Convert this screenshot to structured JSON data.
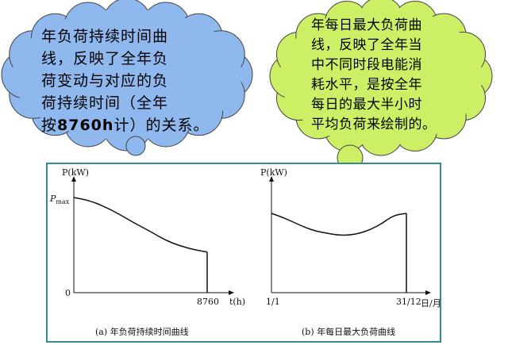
{
  "left_bubble": {
    "line1": "年负荷持续时间曲",
    "line2": "线，反映了全年负",
    "line3": "荷变动与对应的负",
    "line4": "荷持续时间（全年",
    "line5_prefix": "按",
    "line5_bold": "8760h",
    "line5_suffix": "计）的关系。",
    "fill": "#8fb9ee"
  },
  "right_bubble": {
    "line1": "年每日最大负荷曲",
    "line2": "线，反映了全年当",
    "line3": "中不同时段电能消",
    "line4": "耗水平，是按全年",
    "line5": "每日的最大半小时",
    "line6": "平均负荷来绘制的。",
    "fill": "#ccef66"
  },
  "panel_border_color": "#2f8f8f",
  "chart_data": [
    {
      "type": "line",
      "caption": "(a) 年负荷持续时间曲线",
      "ylabel": "P(kW)",
      "xlabel": "t(h)",
      "y_tick_top": "Pmax",
      "y_tick_top_sub": "max",
      "y_tick_top_main": "P",
      "origin_label": "0",
      "x_end_label": "8760",
      "x": [
        0,
        1000,
        2000,
        3000,
        4000,
        5000,
        6000,
        7000,
        8000,
        8760
      ],
      "values": [
        0.96,
        0.93,
        0.87,
        0.79,
        0.7,
        0.62,
        0.53,
        0.47,
        0.43,
        0.41
      ]
    },
    {
      "type": "line",
      "caption": "(b) 年每日最大负荷曲线",
      "ylabel": "P(kW)",
      "xlabel": "日/月",
      "x_start_label": "1/1",
      "x_end_label": "31/12",
      "x": [
        0,
        30,
        60,
        90,
        120,
        150,
        180,
        210,
        240,
        270,
        300,
        330,
        365
      ],
      "values": [
        0.8,
        0.76,
        0.71,
        0.66,
        0.62,
        0.6,
        0.58,
        0.58,
        0.6,
        0.64,
        0.7,
        0.78,
        0.8
      ]
    }
  ]
}
